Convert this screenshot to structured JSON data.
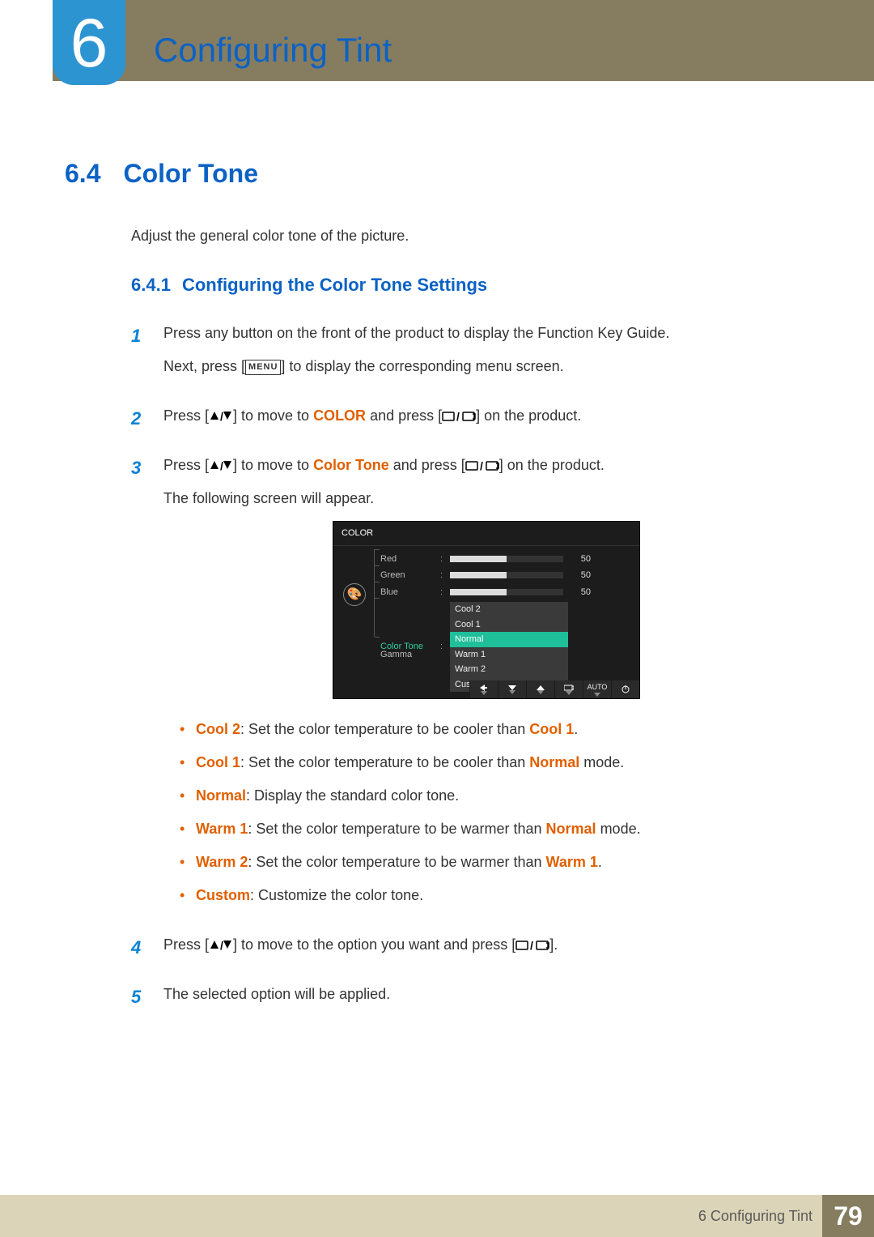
{
  "chapter": {
    "number": "6",
    "title": "Configuring Tint"
  },
  "section": {
    "number": "6.4",
    "title": "Color Tone",
    "intro": "Adjust the general color tone of the picture."
  },
  "subsection": {
    "number": "6.4.1",
    "title": "Configuring the Color Tone Settings"
  },
  "steps": {
    "s1": {
      "p1": "Press any button on the front of the product to display the Function Key Guide.",
      "p2a": "Next, press [",
      "menu": "MENU",
      "p2b": "] to display the corresponding menu screen."
    },
    "s2": {
      "a": "Press [",
      "b": "] to move to ",
      "hl": "COLOR",
      "c": " and press [",
      "d": "] on the product."
    },
    "s3": {
      "a": "Press [",
      "b": "] to move to ",
      "hl": "Color Tone",
      "c": " and press [",
      "d": "] on the product.",
      "p2": "The following screen will appear."
    },
    "s4": {
      "a": "Press [",
      "b": "] to move to the option you want and press [",
      "c": "]."
    },
    "s5": "The selected option will be applied."
  },
  "osd": {
    "title": "COLOR",
    "palette_icon": "🎨",
    "sliders": [
      {
        "label": "Red",
        "value": 50,
        "max": 100
      },
      {
        "label": "Green",
        "value": 50,
        "max": 100
      },
      {
        "label": "Blue",
        "value": 50,
        "max": 100
      }
    ],
    "active_row": "Color Tone",
    "gamma_row": "Gamma",
    "dropdown": {
      "options": [
        "Cool 2",
        "Cool 1",
        "Normal",
        "Warm 1",
        "Warm 2",
        "Custom"
      ],
      "selected": "Normal"
    },
    "footer": {
      "auto": "AUTO"
    }
  },
  "bullets": [
    {
      "hl": "Cool 2",
      "t1": ": Set the color temperature to be cooler than ",
      "hl2": "Cool 1",
      "t2": "."
    },
    {
      "hl": "Cool 1",
      "t1": ": Set the color temperature to be cooler than ",
      "hl2": "Normal",
      "t2": " mode."
    },
    {
      "hl": "Normal",
      "t1": ": Display the standard color tone.",
      "hl2": "",
      "t2": ""
    },
    {
      "hl": "Warm 1",
      "t1": ": Set the color temperature to be warmer than ",
      "hl2": "Normal",
      "t2": " mode."
    },
    {
      "hl": "Warm 2",
      "t1": ": Set the color temperature to be warmer than ",
      "hl2": "Warm 1",
      "t2": "."
    },
    {
      "hl": "Custom",
      "t1": ": Customize the color tone.",
      "hl2": "",
      "t2": ""
    }
  ],
  "footer": {
    "chapter": "6 Configuring Tint",
    "page": "79"
  },
  "colors": {
    "accent_blue": "#0b62c4",
    "step_blue": "#0b82d6",
    "highlight_orange": "#e06000",
    "header_brown": "#867d61",
    "footer_tan": "#dcd4b8",
    "badge_blue": "#2d94d2",
    "osd_bg": "#1c1c1c",
    "osd_sel": "#1fbf99"
  }
}
